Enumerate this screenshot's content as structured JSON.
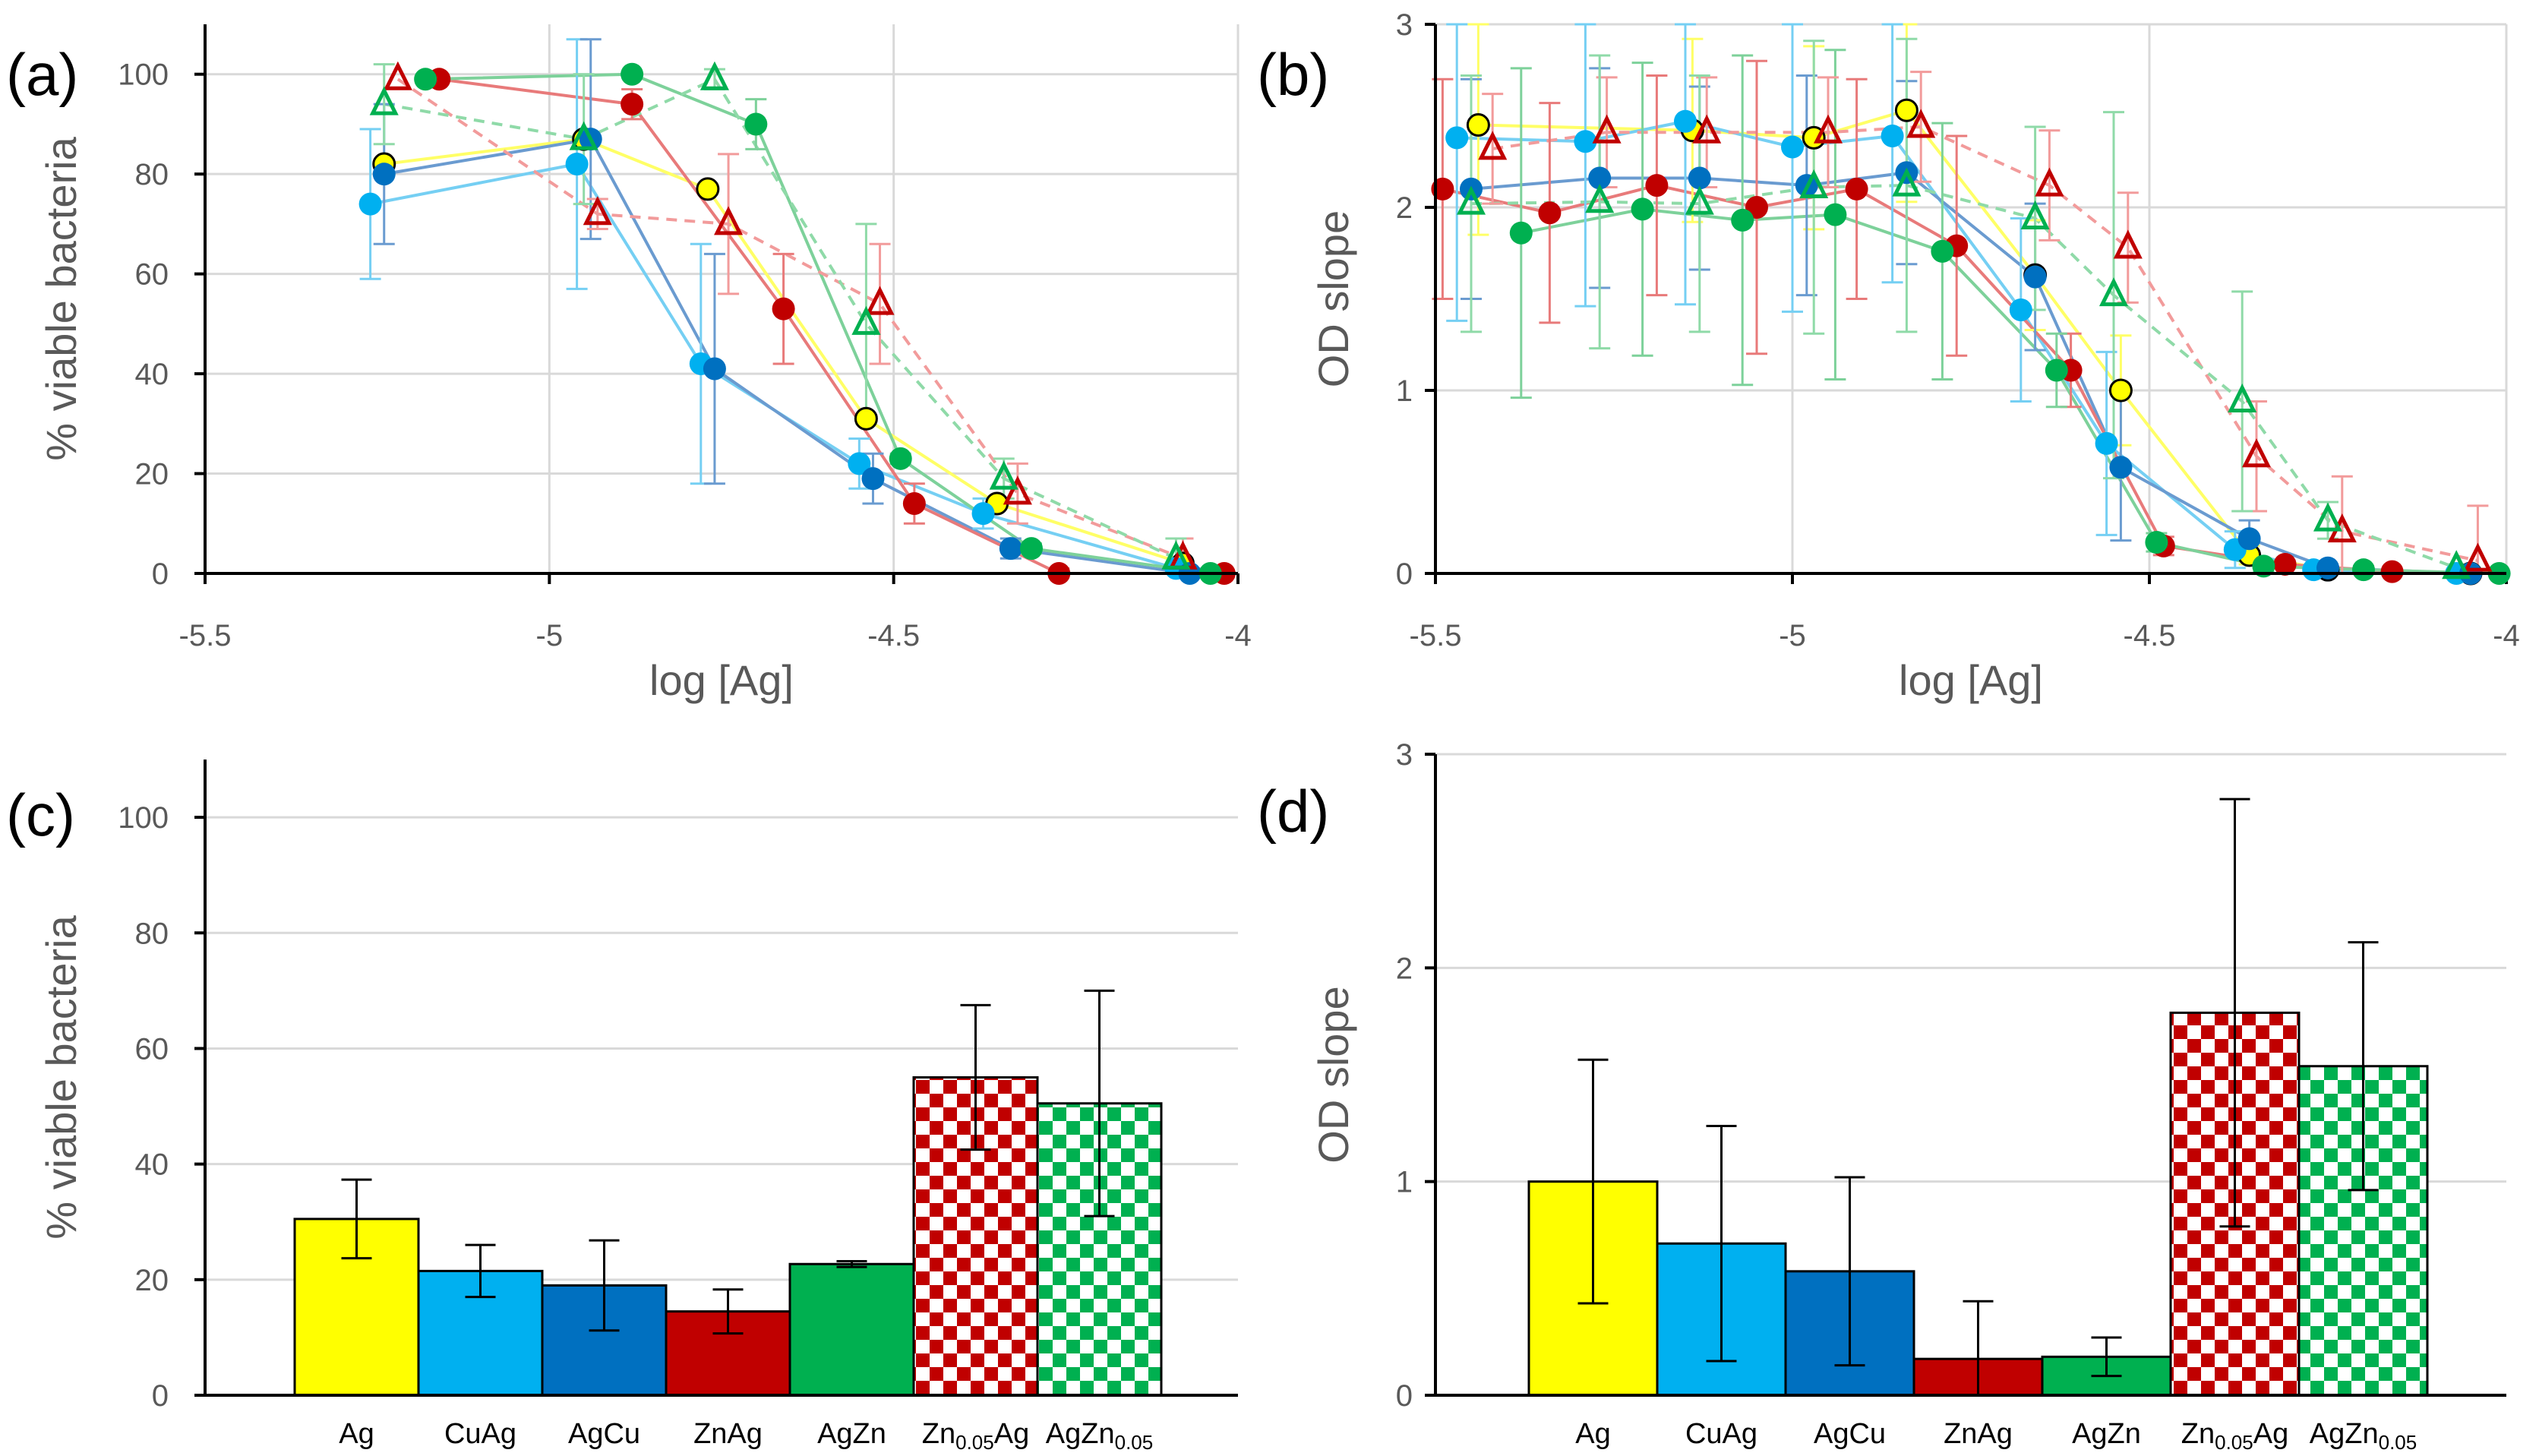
{
  "colors": {
    "Ag": "#ffff00",
    "CuAg": "#00b0f0",
    "AgCu": "#0070c0",
    "ZnAg": "#c00000",
    "AgZn": "#00b050",
    "Zn0.05Ag": "#c00000",
    "AgZn0.05": "#00b050",
    "Ag_line": "#ffff66",
    "CuAg_line": "#75cff3",
    "AgCu_line": "#6a9bd0",
    "ZnAg_line": "#e87a7a",
    "AgZn_line": "#7dd19a",
    "Zn0.05Ag_line": "#f29b9b",
    "AgZn0.05_line": "#8fdaa8"
  },
  "chart_data": [
    {
      "panel": "(a)",
      "type": "line",
      "xlabel": "log [Ag]",
      "ylabel": "% viable bacteria",
      "xlim": [
        -5.5,
        -4
      ],
      "ylim": [
        0,
        110
      ],
      "xticks": [
        "-5.5",
        "-5",
        "-4.5",
        "-4"
      ],
      "yticks": [
        "0",
        "20",
        "40",
        "60",
        "80",
        "100"
      ],
      "grid": true,
      "series": [
        {
          "name": "Ag",
          "marker": "circle-outlined",
          "x": [
            -5.24,
            -4.95,
            -4.77,
            -4.54,
            -4.35,
            -4.08
          ],
          "y": [
            82,
            87,
            77,
            31,
            14,
            2
          ],
          "err": [
            0,
            0,
            0,
            0,
            0,
            0
          ]
        },
        {
          "name": "CuAg",
          "marker": "circle",
          "x": [
            -5.26,
            -4.96,
            -4.78,
            -4.55,
            -4.37,
            -4.09
          ],
          "y": [
            74,
            82,
            42,
            22,
            12,
            1
          ],
          "err": [
            15,
            25,
            24,
            5,
            3,
            1
          ]
        },
        {
          "name": "AgCu",
          "marker": "circle",
          "x": [
            -5.24,
            -4.94,
            -4.76,
            -4.53,
            -4.33,
            -4.07
          ],
          "y": [
            80,
            87,
            41,
            19,
            5,
            0
          ],
          "err": [
            14,
            20,
            23,
            5,
            2,
            1
          ]
        },
        {
          "name": "ZnAg",
          "marker": "circle",
          "x": [
            -5.16,
            -4.88,
            -4.66,
            -4.47,
            -4.26,
            -4.02
          ],
          "y": [
            99,
            94,
            53,
            14,
            0,
            0
          ],
          "err": [
            0,
            3,
            11,
            4,
            1,
            0
          ]
        },
        {
          "name": "AgZn",
          "marker": "circle",
          "x": [
            -5.18,
            -4.88,
            -4.7,
            -4.49,
            -4.3,
            -4.04
          ],
          "y": [
            99,
            100,
            90,
            23,
            5,
            0
          ],
          "err": [
            0,
            0,
            5,
            1,
            1,
            0
          ]
        },
        {
          "name": "Zn0.05Ag",
          "marker": "triangle-open",
          "dashed": true,
          "x": [
            -5.22,
            -4.93,
            -4.74,
            -4.52,
            -4.32,
            -4.08
          ],
          "y": [
            99,
            72,
            70,
            54,
            16,
            3
          ],
          "err": [
            0,
            3,
            14,
            12,
            6,
            4
          ]
        },
        {
          "name": "AgZn0.05",
          "marker": "triangle-open",
          "dashed": true,
          "x": [
            -5.24,
            -4.95,
            -4.76,
            -4.54,
            -4.34,
            -4.09
          ],
          "y": [
            94,
            87,
            99,
            50,
            19,
            3
          ],
          "err": [
            8,
            13,
            2,
            20,
            4,
            4
          ]
        }
      ]
    },
    {
      "panel": "(b)",
      "type": "line",
      "xlabel": "log [Ag]",
      "ylabel": "OD slope",
      "xlim": [
        -5.5,
        -4
      ],
      "ylim": [
        0,
        3
      ],
      "xticks": [
        "-5.5",
        "-5",
        "-4.5",
        "-4"
      ],
      "yticks": [
        "0",
        "1",
        "2",
        "3"
      ],
      "grid": true,
      "series": [
        {
          "name": "Ag",
          "marker": "circle-outlined",
          "x": [
            -5.44,
            -5.14,
            -4.97,
            -4.84,
            -4.66,
            -4.54,
            -4.36,
            -4.25,
            -4.05
          ],
          "y": [
            2.45,
            2.42,
            2.38,
            2.53,
            1.63,
            1.0,
            0.1,
            0.02,
            0.0
          ],
          "err": [
            0.6,
            0.5,
            0.5,
            0.5,
            0.3,
            0.3,
            0.05,
            0.02,
            0.02
          ]
        },
        {
          "name": "CuAg",
          "marker": "circle",
          "x": [
            -5.47,
            -5.29,
            -5.15,
            -5.0,
            -4.86,
            -4.68,
            -4.56,
            -4.38,
            -4.27,
            -4.07
          ],
          "y": [
            2.38,
            2.36,
            2.47,
            2.33,
            2.39,
            1.44,
            0.71,
            0.13,
            0.02,
            0.0
          ],
          "err": [
            1.0,
            0.9,
            1.0,
            0.9,
            0.8,
            0.5,
            0.5,
            0.1,
            0.02,
            0.02
          ]
        },
        {
          "name": "AgCu",
          "marker": "circle",
          "x": [
            -5.45,
            -5.27,
            -5.13,
            -4.98,
            -4.84,
            -4.66,
            -4.54,
            -4.36,
            -4.25,
            -4.05
          ],
          "y": [
            2.1,
            2.16,
            2.16,
            2.12,
            2.19,
            1.62,
            0.58,
            0.19,
            0.03,
            0.0
          ],
          "err": [
            0.6,
            0.6,
            0.5,
            0.6,
            0.5,
            0.4,
            0.4,
            0.1,
            0.02,
            0.02
          ]
        },
        {
          "name": "ZnAg",
          "marker": "circle",
          "x": [
            -5.49,
            -5.34,
            -5.19,
            -5.05,
            -4.91,
            -4.77,
            -4.61,
            -4.48,
            -4.31,
            -4.16
          ],
          "y": [
            2.1,
            1.97,
            2.12,
            2.0,
            2.1,
            1.79,
            1.11,
            0.15,
            0.05,
            0.01
          ],
          "err": [
            0.6,
            0.6,
            0.6,
            0.8,
            0.6,
            0.6,
            0.2,
            0.05,
            0.02,
            0.01
          ]
        },
        {
          "name": "AgZn",
          "marker": "circle",
          "x": [
            -5.38,
            -5.21,
            -5.07,
            -4.94,
            -4.79,
            -4.63,
            -4.49,
            -4.34,
            -4.2,
            -4.01
          ],
          "y": [
            1.86,
            1.99,
            1.93,
            1.96,
            1.76,
            1.11,
            0.17,
            0.04,
            0.02,
            0.0
          ],
          "err": [
            0.9,
            0.8,
            0.9,
            0.9,
            0.7,
            0.2,
            0.05,
            0.03,
            0.02,
            0.01
          ]
        },
        {
          "name": "Zn0.05Ag",
          "marker": "triangle-open",
          "dashed": true,
          "x": [
            -5.42,
            -5.26,
            -5.12,
            -4.95,
            -4.82,
            -4.64,
            -4.53,
            -4.35,
            -4.23,
            -4.04
          ],
          "y": [
            2.32,
            2.41,
            2.41,
            2.41,
            2.44,
            2.12,
            1.78,
            0.64,
            0.23,
            0.07
          ],
          "err": [
            0.3,
            0.3,
            0.3,
            0.3,
            0.3,
            0.3,
            0.3,
            0.3,
            0.3,
            0.3
          ]
        },
        {
          "name": "AgZn0.05",
          "marker": "triangle-open",
          "dashed": true,
          "x": [
            -5.45,
            -5.27,
            -5.13,
            -4.97,
            -4.84,
            -4.66,
            -4.55,
            -4.37,
            -4.25,
            -4.07
          ],
          "y": [
            2.02,
            2.03,
            2.02,
            2.11,
            2.12,
            1.94,
            1.52,
            0.94,
            0.29,
            0.03
          ],
          "err": [
            0.7,
            0.8,
            0.7,
            0.8,
            0.8,
            0.5,
            1.0,
            0.6,
            0.1,
            0.02
          ]
        }
      ]
    },
    {
      "panel": "(c)",
      "type": "bar",
      "ylabel": "% viable bacteria",
      "ylim": [
        0,
        110
      ],
      "yticks": [
        "0",
        "20",
        "40",
        "60",
        "80",
        "100"
      ],
      "grid": true,
      "categories": [
        "Ag",
        "CuAg",
        "AgCu",
        "ZnAg",
        "AgZn",
        "Zn0.05Ag",
        "AgZn0.05"
      ],
      "values": [
        30.5,
        21.5,
        19,
        14.5,
        22.7,
        55,
        50.5
      ],
      "errors": [
        6.8,
        4.5,
        7.8,
        3.8,
        0.5,
        12.5,
        19.5
      ],
      "patterns": [
        "solid",
        "solid",
        "solid",
        "solid",
        "solid",
        "checker",
        "checker"
      ]
    },
    {
      "panel": "(d)",
      "type": "bar",
      "ylabel": "OD slope",
      "ylim": [
        0,
        3
      ],
      "yticks": [
        "0",
        "1",
        "2",
        "3"
      ],
      "grid": true,
      "categories": [
        "Ag",
        "CuAg",
        "AgCu",
        "ZnAg",
        "AgZn",
        "Zn0.05Ag",
        "AgZn0.05"
      ],
      "values": [
        1.0,
        0.71,
        0.58,
        0.17,
        0.18,
        1.79,
        1.54
      ],
      "errors": [
        0.57,
        0.55,
        0.44,
        0.27,
        0.09,
        1.0,
        0.58
      ],
      "patterns": [
        "solid",
        "solid",
        "solid",
        "solid",
        "solid",
        "checker",
        "checker"
      ]
    }
  ]
}
